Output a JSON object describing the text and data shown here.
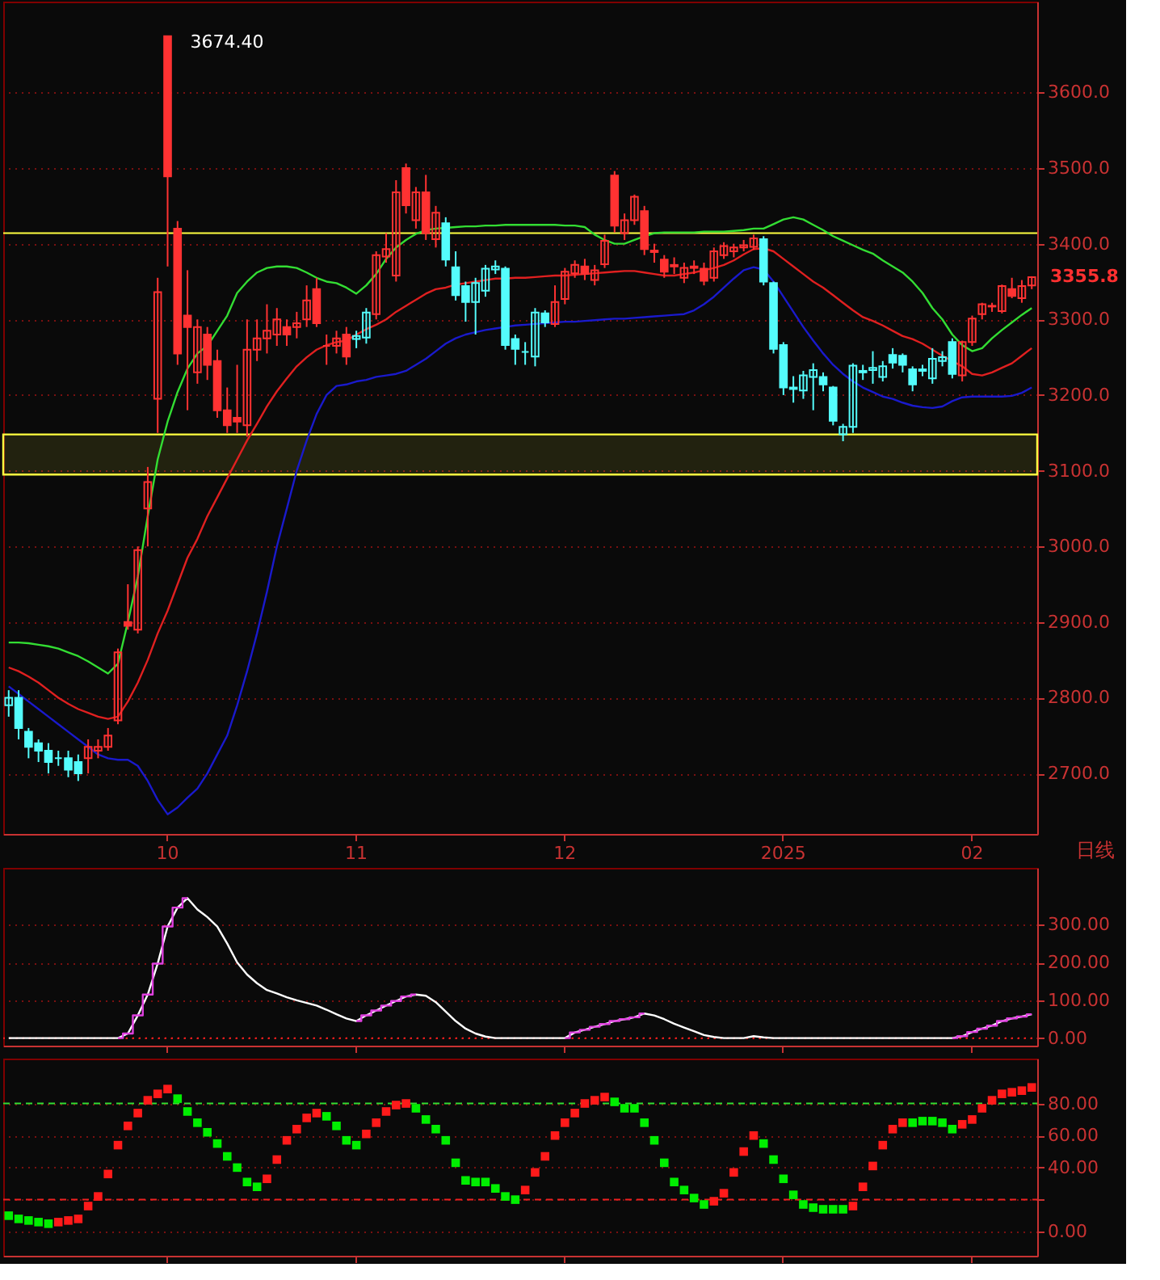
{
  "chart_data": [
    {
      "type": "candlestick",
      "categories": [
        null,
        null,
        null,
        null,
        null,
        null,
        null,
        null,
        null,
        null,
        null,
        null,
        null,
        null,
        null,
        null,
        "10",
        null,
        null,
        null,
        null,
        null,
        null,
        null,
        null,
        null,
        null,
        null,
        null,
        null,
        null,
        null,
        null,
        null,
        null,
        "11",
        null,
        null,
        null,
        null,
        null,
        null,
        null,
        null,
        null,
        null,
        null,
        null,
        null,
        null,
        null,
        null,
        null,
        null,
        null,
        null,
        "12",
        null,
        null,
        null,
        null,
        null,
        null,
        null,
        null,
        null,
        null,
        null,
        null,
        null,
        null,
        null,
        null,
        null,
        null,
        null,
        null,
        null,
        "2025",
        null,
        null,
        null,
        null,
        null,
        null,
        null,
        null,
        null,
        null,
        null,
        null,
        null,
        null,
        null,
        null,
        null,
        null,
        "02",
        null,
        null,
        null,
        null,
        null,
        null
      ],
      "ohlc": [
        [
          2790,
          2810,
          2775,
          2800
        ],
        [
          2800,
          2810,
          2745,
          2760
        ],
        [
          2755,
          2760,
          2720,
          2735
        ],
        [
          2740,
          2745,
          2715,
          2730
        ],
        [
          2730,
          2740,
          2700,
          2715
        ],
        [
          2720,
          2730,
          2710,
          2720
        ],
        [
          2720,
          2730,
          2695,
          2705
        ],
        [
          2715,
          2725,
          2690,
          2700
        ],
        [
          2720,
          2745,
          2700,
          2735
        ],
        [
          2730,
          2745,
          2720,
          2735
        ],
        [
          2735,
          2760,
          2730,
          2750
        ],
        [
          2770,
          2865,
          2765,
          2860
        ],
        [
          2900,
          2950,
          2890,
          2895
        ],
        [
          2890,
          3000,
          2885,
          2995
        ],
        [
          3050,
          3105,
          3000,
          3085
        ],
        [
          3195,
          3355,
          3150,
          3336
        ],
        [
          3674.4,
          3674.4,
          3370,
          3489
        ],
        [
          3420,
          3430,
          3240,
          3255
        ],
        [
          3305,
          3365,
          3180,
          3290
        ],
        [
          3230,
          3300,
          3215,
          3290
        ],
        [
          3280,
          3290,
          3220,
          3240
        ],
        [
          3245,
          3260,
          3170,
          3180
        ],
        [
          3180,
          3210,
          3150,
          3160
        ],
        [
          3170,
          3240,
          3150,
          3165
        ],
        [
          3160,
          3300,
          3145,
          3260
        ],
        [
          3260,
          3300,
          3245,
          3275
        ],
        [
          3275,
          3320,
          3255,
          3285
        ],
        [
          3280,
          3315,
          3265,
          3300
        ],
        [
          3290,
          3300,
          3265,
          3280
        ],
        [
          3290,
          3310,
          3275,
          3295
        ],
        [
          3300,
          3345,
          3290,
          3325
        ],
        [
          3340,
          3355,
          3290,
          3295
        ],
        [
          3265,
          3280,
          3240,
          3265
        ],
        [
          3265,
          3285,
          3255,
          3275
        ],
        [
          3280,
          3290,
          3240,
          3251
        ],
        [
          3274,
          3285,
          3262,
          3278
        ],
        [
          3276,
          3315,
          3268,
          3309
        ],
        [
          3307,
          3390,
          3300,
          3385
        ],
        [
          3383,
          3414,
          3375,
          3393
        ],
        [
          3358,
          3484,
          3350,
          3468
        ],
        [
          3500,
          3506,
          3440,
          3451
        ],
        [
          3431,
          3475,
          3420,
          3468
        ],
        [
          3468,
          3491,
          3405,
          3414
        ],
        [
          3406,
          3450,
          3395,
          3441
        ],
        [
          3427,
          3435,
          3370,
          3379
        ],
        [
          3369,
          3390,
          3325,
          3332
        ],
        [
          3344,
          3350,
          3297,
          3323
        ],
        [
          3323,
          3355,
          3280,
          3348
        ],
        [
          3338,
          3372,
          3330,
          3367
        ],
        [
          3366,
          3378,
          3360,
          3370
        ],
        [
          3367,
          3370,
          3260,
          3266
        ],
        [
          3274,
          3280,
          3240,
          3261
        ],
        [
          3257,
          3270,
          3240,
          3257
        ],
        [
          3251,
          3315,
          3238,
          3309
        ],
        [
          3308,
          3312,
          3290,
          3296
        ],
        [
          3294,
          3345,
          3290,
          3323
        ],
        [
          3327,
          3368,
          3320,
          3363
        ],
        [
          3361,
          3378,
          3355,
          3372
        ],
        [
          3370,
          3380,
          3352,
          3360
        ],
        [
          3352,
          3372,
          3345,
          3365
        ],
        [
          3373,
          3412,
          3368,
          3404
        ],
        [
          3490,
          3496,
          3415,
          3424
        ],
        [
          3414,
          3440,
          3405,
          3431
        ],
        [
          3431,
          3465,
          3425,
          3462
        ],
        [
          3443,
          3450,
          3385,
          3393
        ],
        [
          3391,
          3400,
          3375,
          3389
        ],
        [
          3379,
          3385,
          3355,
          3363
        ],
        [
          3370,
          3382,
          3360,
          3372
        ],
        [
          3355,
          3375,
          3348,
          3368
        ],
        [
          3370,
          3378,
          3360,
          3368
        ],
        [
          3367,
          3375,
          3345,
          3351
        ],
        [
          3355,
          3395,
          3350,
          3390
        ],
        [
          3385,
          3402,
          3380,
          3397
        ],
        [
          3390,
          3400,
          3382,
          3395
        ],
        [
          3395,
          3405,
          3390,
          3398
        ],
        [
          3396,
          3412,
          3392,
          3407
        ],
        [
          3406,
          3410,
          3345,
          3350
        ],
        [
          3348,
          3350,
          3255,
          3261
        ],
        [
          3266,
          3270,
          3200,
          3210
        ],
        [
          3210,
          3225,
          3190,
          3208
        ],
        [
          3206,
          3232,
          3195,
          3226
        ],
        [
          3224,
          3242,
          3180,
          3233
        ],
        [
          3224,
          3230,
          3205,
          3214
        ],
        [
          3210,
          3212,
          3160,
          3166
        ],
        [
          3148,
          3162,
          3139,
          3158
        ],
        [
          3158,
          3242,
          3150,
          3239
        ],
        [
          3230,
          3240,
          3220,
          3232
        ],
        [
          3233,
          3258,
          3215,
          3236
        ],
        [
          3224,
          3245,
          3218,
          3238
        ],
        [
          3253,
          3262,
          3235,
          3243
        ],
        [
          3252,
          3255,
          3230,
          3240
        ],
        [
          3234,
          3238,
          3205,
          3214
        ],
        [
          3232,
          3240,
          3225,
          3234
        ],
        [
          3222,
          3262,
          3215,
          3248
        ],
        [
          3245,
          3258,
          3238,
          3250
        ],
        [
          3270,
          3275,
          3222,
          3228
        ],
        [
          3226,
          3272,
          3218,
          3270
        ],
        [
          3270,
          3305,
          3265,
          3301
        ],
        [
          3307,
          3322,
          3300,
          3320
        ],
        [
          3317,
          3322,
          3310,
          3318
        ],
        [
          3311,
          3346,
          3308,
          3344
        ],
        [
          3340,
          3355,
          3328,
          3331
        ],
        [
          3328,
          3352,
          3322,
          3344
        ],
        [
          3345,
          3357,
          3340,
          3355.8
        ]
      ],
      "colors": [
        "#54fcfc",
        "#54fcfc",
        "#54fcfc",
        "#54fcfc",
        "#54fcfc",
        "#54fcfc",
        "#54fcfc",
        "#54fcfc",
        "#ff3232",
        "#ff3232",
        "#ff3232",
        "#ff3232",
        "#ff3232",
        "#ff3232",
        "#ff3232",
        "#ff3232",
        "#ff3232",
        "#ff3232",
        "#ff3232",
        "#ff3232",
        "#ff3232",
        "#ff3232",
        "#ff3232",
        "#ff3232",
        "#ff3232",
        "#ff3232",
        "#ff3232",
        "#ff3232",
        "#ff3232",
        "#ff3232",
        "#ff3232",
        "#ff3232",
        "#ff3232",
        "#ff3232",
        "#ff3232",
        "#54fcfc",
        "#54fcfc",
        "#ff3232",
        "#ff3232",
        "#ff3232",
        "#ff3232",
        "#ff3232",
        "#ff3232",
        "#ff3232",
        "#54fcfc",
        "#54fcfc",
        "#54fcfc",
        "#54fcfc",
        "#54fcfc",
        "#54fcfc",
        "#54fcfc",
        "#54fcfc",
        "#54fcfc",
        "#54fcfc",
        "#54fcfc",
        "#ff3232",
        "#ff3232",
        "#ff3232",
        "#ff3232",
        "#ff3232",
        "#ff3232",
        "#ff3232",
        "#ff3232",
        "#ff3232",
        "#ff3232",
        "#ff3232",
        "#ff3232",
        "#ff3232",
        "#ff3232",
        "#ff3232",
        "#ff3232",
        "#ff3232",
        "#ff3232",
        "#ff3232",
        "#ff3232",
        "#ff3232",
        "#54fcfc",
        "#54fcfc",
        "#54fcfc",
        "#54fcfc",
        "#54fcfc",
        "#54fcfc",
        "#54fcfc",
        "#54fcfc",
        "#54fcfc",
        "#54fcfc",
        "#54fcfc",
        "#54fcfc",
        "#54fcfc",
        "#54fcfc",
        "#54fcfc",
        "#54fcfc",
        "#54fcfc",
        "#54fcfc",
        "#54fcfc",
        "#54fcfc",
        "#ff3232",
        "#ff3232",
        "#ff3232",
        "#ff3232",
        "#ff3232",
        "#ff3232",
        "#ff3232",
        "#ff3232"
      ],
      "series": [
        {
          "type": "line",
          "color": "#33dd33",
          "values": [
            2873,
            2873,
            2872,
            2870,
            2868,
            2865,
            2860,
            2855,
            2848,
            2840,
            2832,
            2845,
            2900,
            2960,
            3040,
            3115,
            3165,
            3204,
            3235,
            3255,
            3265,
            3285,
            3305,
            3335,
            3350,
            3362,
            3368,
            3370,
            3370,
            3368,
            3362,
            3355,
            3350,
            3348,
            3342,
            3334,
            3345,
            3360,
            3380,
            3395,
            3405,
            3413,
            3418,
            3420,
            3421,
            3422,
            3423,
            3423,
            3424,
            3424,
            3425,
            3425,
            3425,
            3425,
            3425,
            3425,
            3424,
            3424,
            3422,
            3412,
            3405,
            3400,
            3400,
            3405,
            3410,
            3414,
            3415,
            3415,
            3415,
            3415,
            3416,
            3416,
            3416,
            3417,
            3418,
            3420,
            3420,
            3426,
            3432,
            3435,
            3432,
            3425,
            3418,
            3410,
            3404,
            3398,
            3392,
            3387,
            3378,
            3370,
            3362,
            3350,
            3335,
            3315,
            3300,
            3280,
            3266,
            3258,
            3262,
            3275,
            3286,
            3296,
            3306,
            3315
          ]
        },
        {
          "type": "line",
          "color": "#e02020",
          "values": [
            2840,
            2835,
            2828,
            2820,
            2810,
            2800,
            2792,
            2785,
            2780,
            2775,
            2772,
            2775,
            2795,
            2820,
            2850,
            2885,
            2915,
            2950,
            2985,
            3010,
            3040,
            3065,
            3090,
            3115,
            3140,
            3162,
            3185,
            3205,
            3222,
            3238,
            3250,
            3260,
            3266,
            3270,
            3272,
            3280,
            3287,
            3293,
            3300,
            3310,
            3318,
            3326,
            3334,
            3340,
            3342,
            3346,
            3348,
            3350,
            3352,
            3354,
            3354,
            3355,
            3355,
            3356,
            3357,
            3358,
            3358,
            3359,
            3360,
            3361,
            3362,
            3363,
            3364,
            3364,
            3362,
            3360,
            3358,
            3358,
            3360,
            3362,
            3365,
            3368,
            3372,
            3378,
            3386,
            3393,
            3394,
            3390,
            3380,
            3370,
            3360,
            3350,
            3342,
            3332,
            3322,
            3312,
            3303,
            3298,
            3292,
            3285,
            3278,
            3274,
            3268,
            3260,
            3252,
            3245,
            3238,
            3228,
            3226,
            3230,
            3236,
            3242,
            3252,
            3262
          ]
        },
        {
          "type": "line",
          "color": "#1a1acc",
          "values": [
            2815,
            2805,
            2795,
            2785,
            2775,
            2765,
            2755,
            2745,
            2735,
            2725,
            2720,
            2718,
            2718,
            2710,
            2690,
            2665,
            2646,
            2655,
            2668,
            2680,
            2700,
            2725,
            2750,
            2790,
            2835,
            2885,
            2940,
            3000,
            3050,
            3100,
            3140,
            3175,
            3200,
            3212,
            3214,
            3218,
            3220,
            3224,
            3226,
            3228,
            3232,
            3240,
            3248,
            3258,
            3268,
            3275,
            3280,
            3283,
            3286,
            3288,
            3290,
            3292,
            3293,
            3294,
            3295,
            3296,
            3297,
            3297,
            3298,
            3299,
            3300,
            3301,
            3301,
            3302,
            3303,
            3304,
            3305,
            3306,
            3307,
            3312,
            3320,
            3330,
            3342,
            3354,
            3365,
            3369,
            3366,
            3350,
            3330,
            3310,
            3290,
            3272,
            3255,
            3240,
            3228,
            3218,
            3210,
            3204,
            3198,
            3195,
            3190,
            3186,
            3184,
            3183,
            3185,
            3192,
            3197,
            3198,
            3198,
            3198,
            3198,
            3199,
            3203,
            3210
          ]
        }
      ],
      "ylim": [
        2620,
        3720
      ],
      "yticks": [
        {
          "value": 2700,
          "label": "2700.0"
        },
        {
          "value": 2800,
          "label": "2800.0"
        },
        {
          "value": 2900,
          "label": "2900.0"
        },
        {
          "value": 3000,
          "label": "3000.0"
        },
        {
          "value": 3100,
          "label": "3100.0"
        },
        {
          "value": 3200,
          "label": "3200.0"
        },
        {
          "value": 3300,
          "label": "3300.0"
        },
        {
          "value": 3400,
          "label": "3400.0"
        },
        {
          "value": 3500,
          "label": "3500.0"
        },
        {
          "value": 3600,
          "label": "3600.0"
        }
      ],
      "grid": "y",
      "ref_lines": [
        {
          "axis": "y",
          "value": 3414,
          "color": "#ffff40",
          "line_style": "solid"
        }
      ],
      "bands": [
        {
          "axis": "y",
          "from": 3095,
          "to": 3148,
          "color": "#ffff40"
        }
      ],
      "annotations": [
        {
          "text": "3674.40",
          "x": "10",
          "y": 3674.4
        },
        "3355.8",
        "日线"
      ]
    },
    {
      "type": "line",
      "categories": [
        null,
        null,
        null,
        null,
        null,
        null,
        null,
        null,
        null,
        null,
        null,
        null,
        null,
        null,
        null,
        null,
        "10",
        null,
        null,
        null,
        null,
        null,
        null,
        null,
        null,
        null,
        null,
        null,
        null,
        null,
        null,
        null,
        null,
        null,
        null,
        "11",
        null,
        null,
        null,
        null,
        null,
        null,
        null,
        null,
        null,
        null,
        null,
        null,
        null,
        null,
        null,
        null,
        null,
        null,
        null,
        null,
        "12",
        null,
        null,
        null,
        null,
        null,
        null,
        null,
        null,
        null,
        null,
        null,
        null,
        null,
        null,
        null,
        null,
        null,
        null,
        null,
        null,
        null,
        "2025",
        null,
        null,
        null,
        null,
        null,
        null,
        null,
        null,
        null,
        null,
        null,
        null,
        null,
        null,
        null,
        null,
        null,
        null,
        "02",
        null,
        null,
        null,
        null,
        null,
        null
      ],
      "series": [
        {
          "type": "line",
          "color": "#ffffff",
          "values": [
            0,
            0,
            0,
            0,
            0,
            0,
            0,
            0,
            0,
            0,
            0,
            0,
            12,
            60,
            115,
            197,
            295,
            345,
            370,
            340,
            320,
            295,
            250,
            200,
            168,
            145,
            127,
            118,
            108,
            100,
            93,
            86,
            75,
            63,
            52,
            45,
            60,
            73,
            86,
            98,
            110,
            115,
            112,
            95,
            70,
            45,
            25,
            12,
            4,
            0,
            0,
            0,
            0,
            0,
            0,
            0,
            0,
            15,
            22,
            30,
            37,
            45,
            50,
            55,
            65,
            60,
            50,
            38,
            28,
            18,
            8,
            3,
            0,
            0,
            0,
            5,
            2,
            0,
            0,
            0,
            0,
            0,
            0,
            0,
            0,
            0,
            0,
            0,
            0,
            0,
            0,
            0,
            0,
            0,
            0,
            0,
            5,
            16,
            25,
            33,
            45,
            52,
            57,
            63
          ]
        },
        {
          "type": "step",
          "color": "#e040e0",
          "values": [
            null,
            null,
            null,
            null,
            null,
            null,
            null,
            null,
            null,
            null,
            null,
            0,
            12,
            60,
            115,
            197,
            295,
            345,
            370,
            null,
            null,
            null,
            null,
            null,
            null,
            null,
            null,
            null,
            null,
            null,
            null,
            null,
            null,
            null,
            null,
            45,
            60,
            73,
            86,
            98,
            110,
            115,
            null,
            null,
            null,
            null,
            null,
            null,
            null,
            null,
            null,
            null,
            null,
            null,
            null,
            null,
            0,
            15,
            22,
            30,
            37,
            45,
            50,
            55,
            65,
            null,
            null,
            null,
            null,
            null,
            null,
            null,
            null,
            null,
            null,
            null,
            null,
            null,
            null,
            null,
            null,
            null,
            null,
            null,
            null,
            null,
            null,
            null,
            null,
            null,
            null,
            null,
            null,
            null,
            null,
            0,
            5,
            16,
            25,
            33,
            45,
            52,
            57,
            63
          ]
        }
      ],
      "ylim": [
        -20,
        450
      ],
      "yticks": [
        {
          "value": 0,
          "label": "0.00"
        },
        {
          "value": 100,
          "label": "100.00"
        },
        {
          "value": 200,
          "label": "200.00"
        },
        {
          "value": 300,
          "label": "300.00"
        }
      ],
      "grid": "y",
      "tick_labels": "y",
      "ref_lines": [
        {
          "axis": "y",
          "value": 0,
          "color": "#ff2020",
          "line_style": "dotted"
        }
      ]
    },
    {
      "type": "scatter",
      "marker": "square",
      "categories": [
        null,
        null,
        null,
        null,
        null,
        null,
        null,
        null,
        null,
        null,
        null,
        null,
        null,
        null,
        null,
        null,
        "10",
        null,
        null,
        null,
        null,
        null,
        null,
        null,
        null,
        null,
        null,
        null,
        null,
        null,
        null,
        null,
        null,
        null,
        null,
        "11",
        null,
        null,
        null,
        null,
        null,
        null,
        null,
        null,
        null,
        null,
        null,
        null,
        null,
        null,
        null,
        null,
        null,
        null,
        null,
        null,
        "12",
        null,
        null,
        null,
        null,
        null,
        null,
        null,
        null,
        null,
        null,
        null,
        null,
        null,
        null,
        null,
        null,
        null,
        null,
        null,
        null,
        null,
        "2025",
        null,
        null,
        null,
        null,
        null,
        null,
        null,
        null,
        null,
        null,
        null,
        null,
        null,
        null,
        null,
        null,
        null,
        null,
        "02",
        null,
        null,
        null,
        null,
        null,
        null
      ],
      "values": [
        10,
        8,
        7,
        6,
        5,
        6,
        7,
        8,
        16,
        22,
        36,
        54,
        66,
        74,
        82,
        86,
        89,
        83,
        75,
        68,
        62,
        55,
        47,
        40,
        31,
        28,
        33,
        45,
        57,
        64,
        71,
        74,
        72,
        66,
        57,
        54,
        61,
        68,
        75,
        79,
        80,
        77,
        70,
        64,
        57,
        43,
        32,
        31,
        31,
        27,
        22,
        20,
        26,
        37,
        47,
        60,
        68,
        74,
        80,
        82,
        84,
        81,
        77,
        77,
        68,
        57,
        43,
        31,
        26,
        21,
        17,
        19,
        24,
        37,
        50,
        60,
        55,
        45,
        33,
        23,
        17,
        15,
        14,
        14,
        14,
        16,
        28,
        41,
        54,
        64,
        68,
        68,
        69,
        69,
        68,
        64,
        67,
        70,
        77,
        82,
        86,
        87,
        88,
        90
      ],
      "colors": [
        "#00ee00",
        "#00ee00",
        "#00ee00",
        "#00ee00",
        "#00ee00",
        "#ff1a1a",
        "#ff1a1a",
        "#ff1a1a",
        "#ff1a1a",
        "#ff1a1a",
        "#ff1a1a",
        "#ff1a1a",
        "#ff1a1a",
        "#ff1a1a",
        "#ff1a1a",
        "#ff1a1a",
        "#ff1a1a",
        "#00ee00",
        "#00ee00",
        "#00ee00",
        "#00ee00",
        "#00ee00",
        "#00ee00",
        "#00ee00",
        "#00ee00",
        "#00ee00",
        "#ff1a1a",
        "#ff1a1a",
        "#ff1a1a",
        "#ff1a1a",
        "#ff1a1a",
        "#ff1a1a",
        "#00ee00",
        "#00ee00",
        "#00ee00",
        "#00ee00",
        "#ff1a1a",
        "#ff1a1a",
        "#ff1a1a",
        "#ff1a1a",
        "#ff1a1a",
        "#00ee00",
        "#00ee00",
        "#00ee00",
        "#00ee00",
        "#00ee00",
        "#00ee00",
        "#00ee00",
        "#00ee00",
        "#00ee00",
        "#00ee00",
        "#00ee00",
        "#ff1a1a",
        "#ff1a1a",
        "#ff1a1a",
        "#ff1a1a",
        "#ff1a1a",
        "#ff1a1a",
        "#ff1a1a",
        "#ff1a1a",
        "#ff1a1a",
        "#00ee00",
        "#00ee00",
        "#00ee00",
        "#00ee00",
        "#00ee00",
        "#00ee00",
        "#00ee00",
        "#00ee00",
        "#00ee00",
        "#00ee00",
        "#ff1a1a",
        "#ff1a1a",
        "#ff1a1a",
        "#ff1a1a",
        "#ff1a1a",
        "#00ee00",
        "#00ee00",
        "#00ee00",
        "#00ee00",
        "#00ee00",
        "#00ee00",
        "#00ee00",
        "#00ee00",
        "#00ee00",
        "#ff1a1a",
        "#ff1a1a",
        "#ff1a1a",
        "#ff1a1a",
        "#ff1a1a",
        "#ff1a1a",
        "#00ee00",
        "#00ee00",
        "#00ee00",
        "#00ee00",
        "#00ee00",
        "#ff1a1a",
        "#ff1a1a",
        "#ff1a1a",
        "#ff1a1a",
        "#ff1a1a",
        "#ff1a1a",
        "#ff1a1a",
        "#ff1a1a"
      ],
      "ylim": [
        -15,
        108
      ],
      "yticks": [
        {
          "value": 0,
          "label": "0.00"
        },
        {
          "value": 20,
          "label": null
        },
        {
          "value": 40,
          "label": "40.00"
        },
        {
          "value": 60,
          "label": "60.00"
        },
        {
          "value": 80,
          "label": "80.00"
        }
      ],
      "grid": "y",
      "tick_labels": "y",
      "ref_lines": [
        {
          "axis": "y",
          "value": 80,
          "color": "#33dd33",
          "line_style": "dashed"
        },
        {
          "axis": "y",
          "value": 20,
          "color": "#ee2020",
          "line_style": "dashed"
        }
      ]
    }
  ]
}
